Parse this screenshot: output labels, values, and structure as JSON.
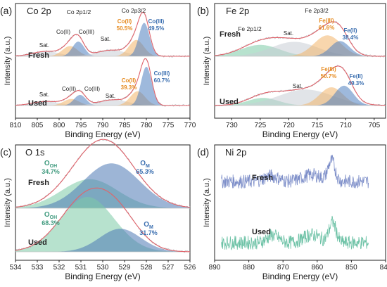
{
  "figure": {
    "colors": {
      "frame": "#222222",
      "fit_envelope": "#e0636b",
      "raw_data": "#9aa0a6",
      "co3_fill": "#4f7fc0",
      "co2_fill": "#f2b46a",
      "sat_fill": "#c9cdd6",
      "oxide_fill": "#4c78b5",
      "hydroxide_fill": "#7ccaa6",
      "label_blue": "#3b6fb0",
      "label_orange": "#e68a1e",
      "label_teal": "#3f9a7e",
      "ni_fresh": "#7e8fc9",
      "ni_used": "#6dc2a6"
    }
  },
  "chart_data": [
    {
      "id": "a",
      "type": "area",
      "panel_label": "(a)",
      "element": "Co 2p",
      "xlabel": "Binding Energy (eV)",
      "ylabel": "Intensity (a.u.)",
      "xlim": [
        810,
        770
      ],
      "xticks": [
        810,
        805,
        800,
        795,
        790,
        785,
        780,
        775,
        770
      ],
      "annotations": [
        "Co 2p1/2",
        "Co 2p3/2"
      ],
      "spectra": [
        {
          "name": "Fresh",
          "peaks": [
            {
              "label": "Sat.",
              "center": 803.0,
              "fwhm": 4.5,
              "height": 0.12,
              "component": "sat"
            },
            {
              "label": "Co(II)",
              "center": 797.5,
              "fwhm": 2.6,
              "height": 0.25,
              "component": "co2"
            },
            {
              "label": "Co(III)",
              "center": 795.6,
              "fwhm": 2.0,
              "height": 0.36,
              "component": "co3"
            },
            {
              "label": "Sat.",
              "center": 788.0,
              "fwhm": 5.0,
              "height": 0.15,
              "component": "sat"
            },
            {
              "label": "Co(II)",
              "center": 782.3,
              "fwhm": 2.5,
              "height": 0.4,
              "component": "co2"
            },
            {
              "label": "Co(III)",
              "center": 780.5,
              "fwhm": 1.8,
              "height": 0.82,
              "component": "co3"
            }
          ],
          "composition": [
            {
              "species": "Co(II)",
              "percent": "50.5%"
            },
            {
              "species": "Co(III)",
              "percent": "49.5%"
            }
          ]
        },
        {
          "name": "Used",
          "peaks": [
            {
              "label": "Sat.",
              "center": 803.0,
              "fwhm": 4.5,
              "height": 0.1,
              "component": "sat"
            },
            {
              "label": "Co(II)",
              "center": 797.2,
              "fwhm": 2.6,
              "height": 0.16,
              "component": "co2"
            },
            {
              "label": "Co(III)",
              "center": 795.2,
              "fwhm": 2.0,
              "height": 0.26,
              "component": "co3"
            },
            {
              "label": "Sat.",
              "center": 787.5,
              "fwhm": 5.0,
              "height": 0.14,
              "component": "sat"
            },
            {
              "label": "Co(II)",
              "center": 782.0,
              "fwhm": 2.5,
              "height": 0.35,
              "component": "co2"
            },
            {
              "label": "Co(III)",
              "center": 780.0,
              "fwhm": 1.8,
              "height": 0.95,
              "component": "co3"
            }
          ],
          "composition": [
            {
              "species": "Co(II)",
              "percent": "39.3%"
            },
            {
              "species": "Co(III)",
              "percent": "60.7%"
            }
          ]
        }
      ]
    },
    {
      "id": "b",
      "type": "area",
      "panel_label": "(b)",
      "element": "Fe 2p",
      "xlabel": "Binding Energy (eV)",
      "ylabel": "Intensity (a.u.)",
      "xlim": [
        733,
        703
      ],
      "xticks": [
        730,
        725,
        720,
        715,
        710,
        705
      ],
      "annotations": [
        "Fe 2p1/2",
        "Fe 2p3/2"
      ],
      "spectra": [
        {
          "name": "Fresh",
          "peaks": [
            {
              "label": "",
              "center": 725.0,
              "fwhm": 5.0,
              "height": 0.3,
              "component": "hydroxide"
            },
            {
              "label": "Sat.",
              "center": 719.0,
              "fwhm": 6.0,
              "height": 0.38,
              "component": "sat"
            },
            {
              "label": "Fe(III)",
              "center": 713.2,
              "fwhm": 3.5,
              "height": 0.55,
              "component": "co2"
            },
            {
              "label": "Fe(II)",
              "center": 711.0,
              "fwhm": 2.5,
              "height": 0.4,
              "component": "co3"
            }
          ],
          "composition": [
            {
              "species": "Fe(III)",
              "percent": "61.6%"
            },
            {
              "species": "Fe(II)",
              "percent": "38.4%"
            }
          ]
        },
        {
          "name": "Used",
          "peaks": [
            {
              "label": "",
              "center": 724.5,
              "fwhm": 4.0,
              "height": 0.2,
              "component": "hydroxide"
            },
            {
              "label": "Sat.",
              "center": 717.0,
              "fwhm": 7.0,
              "height": 0.42,
              "component": "sat"
            },
            {
              "label": "Fe(III)",
              "center": 712.5,
              "fwhm": 3.0,
              "height": 0.48,
              "component": "co2"
            },
            {
              "label": "Fe(II)",
              "center": 710.3,
              "fwhm": 2.4,
              "height": 0.52,
              "component": "co3"
            }
          ],
          "composition": [
            {
              "species": "Fe(III)",
              "percent": "50.7%"
            },
            {
              "species": "Fe(II)",
              "percent": "49.3%"
            }
          ]
        }
      ]
    },
    {
      "id": "c",
      "type": "area",
      "panel_label": "(c)",
      "element": "O 1s",
      "xlabel": "Binding Energy (eV)",
      "ylabel": "Intensity (a.u.)",
      "xlim": [
        534,
        526
      ],
      "xticks": [
        534,
        533,
        532,
        531,
        530,
        529,
        528,
        527,
        526
      ],
      "spectra": [
        {
          "name": "Fresh",
          "peaks": [
            {
              "label": "O_OH",
              "center": 530.6,
              "fwhm": 1.9,
              "height": 0.55,
              "component": "hydroxide"
            },
            {
              "label": "O_M",
              "center": 529.6,
              "fwhm": 1.9,
              "height": 0.85,
              "component": "oxide"
            }
          ],
          "composition": [
            {
              "species_main": "O",
              "species_sub": "OH",
              "percent": "34.7%"
            },
            {
              "species_main": "O",
              "species_sub": "M",
              "percent": "65.3%"
            }
          ]
        },
        {
          "name": "Used",
          "peaks": [
            {
              "label": "O_OH",
              "center": 530.7,
              "fwhm": 1.8,
              "height": 1.0,
              "component": "hydroxide"
            },
            {
              "label": "O_M",
              "center": 529.2,
              "fwhm": 1.4,
              "height": 0.42,
              "component": "oxide"
            }
          ],
          "composition": [
            {
              "species_main": "O",
              "species_sub": "OH",
              "percent": "68.3%"
            },
            {
              "species_main": "O",
              "species_sub": "M",
              "percent": "31.7%"
            }
          ]
        }
      ]
    },
    {
      "id": "d",
      "type": "line",
      "panel_label": "(d)",
      "element": "Ni 2p",
      "xlabel": "Binding Energy (eV)",
      "ylabel": "Intensity (a.u.)",
      "xlim": [
        890,
        840
      ],
      "xticks": [
        890,
        880,
        870,
        860,
        850,
        840
      ],
      "spectra": [
        {
          "name": "Fresh",
          "x_range": [
            888,
            845
          ],
          "features": [
            {
              "center": 855.8,
              "fwhm": 1.5,
              "height": 0.55
            },
            {
              "center": 861.5,
              "fwhm": 4.0,
              "height": 0.18
            },
            {
              "center": 873.5,
              "fwhm": 3.0,
              "height": 0.15
            }
          ]
        },
        {
          "name": "Used",
          "x_range": [
            888,
            845
          ],
          "features": [
            {
              "center": 855.5,
              "fwhm": 1.5,
              "height": 0.55
            },
            {
              "center": 861.5,
              "fwhm": 3.5,
              "height": 0.22
            },
            {
              "center": 873.0,
              "fwhm": 2.5,
              "height": 0.2
            }
          ]
        }
      ]
    }
  ]
}
